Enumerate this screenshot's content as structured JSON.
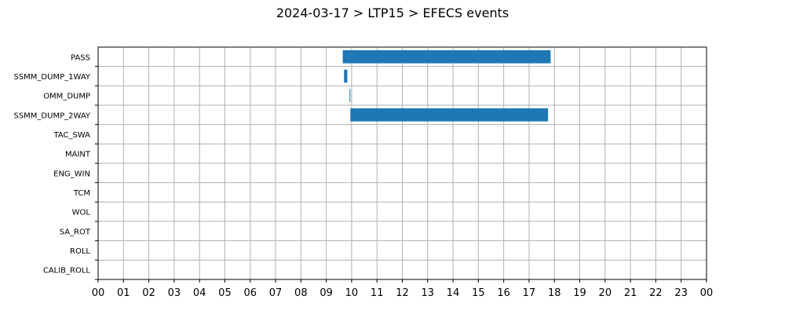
{
  "chart_data": {
    "type": "bar",
    "orientation": "horizontal-timeline",
    "title": "2024-03-17 > LTP15 > EFECS events",
    "xlabel": "",
    "ylabel": "",
    "xlim": [
      0,
      24
    ],
    "x_tick_labels": [
      "00",
      "01",
      "02",
      "03",
      "04",
      "05",
      "06",
      "07",
      "08",
      "09",
      "10",
      "11",
      "12",
      "13",
      "14",
      "15",
      "16",
      "17",
      "18",
      "19",
      "20",
      "21",
      "22",
      "23",
      "00"
    ],
    "categories": [
      "PASS",
      "SSMM_DUMP_1WAY",
      "OMM_DUMP",
      "SSMM_DUMP_2WAY",
      "TAC_SWA",
      "MAINT",
      "ENG_WIN",
      "TCM",
      "WOL",
      "SA_ROT",
      "ROLL",
      "CALIB_ROLL"
    ],
    "series": [
      {
        "values": [
          {
            "category": "PASS",
            "start": 9.65,
            "end": 17.85
          },
          {
            "category": "SSMM_DUMP_1WAY",
            "start": 9.7,
            "end": 9.83
          },
          {
            "category": "OMM_DUMP",
            "start": 9.92,
            "end": 9.95
          },
          {
            "category": "SSMM_DUMP_2WAY",
            "start": 9.95,
            "end": 17.75
          }
        ]
      }
    ],
    "bar_color": "#1f77b4",
    "grid": true,
    "legend": "none"
  }
}
